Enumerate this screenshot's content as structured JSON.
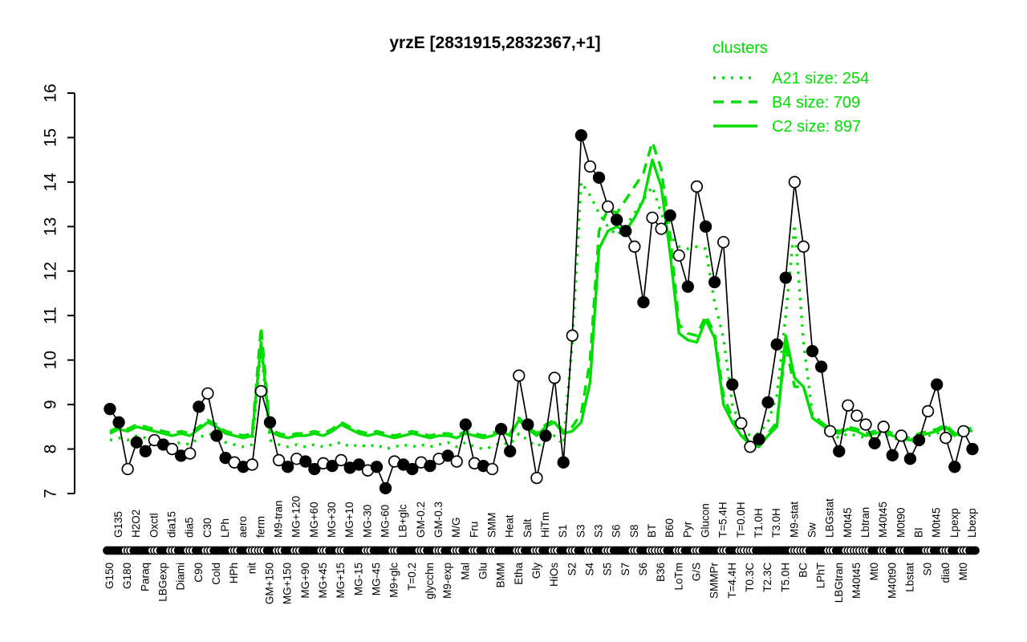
{
  "title": "yrzE [2831915,2832367,+1]",
  "colors": {
    "cluster_green": "#00dd00",
    "profile_line": "#000000",
    "marker_filled": "#000000",
    "marker_open": "#ffffff",
    "background": "#ffffff"
  },
  "legend": {
    "title": "clusters",
    "items": [
      {
        "label": "A21 size: 254",
        "style": "dotted"
      },
      {
        "label": "B4 size: 709",
        "style": "dashed"
      },
      {
        "label": "C2 size: 897",
        "style": "solid"
      }
    ]
  },
  "chart_data": {
    "type": "line",
    "title": "yrzE [2831915,2832367,+1]",
    "xlabel": "",
    "ylabel": "",
    "ylim": [
      7,
      16
    ],
    "yticks": [
      7,
      8,
      9,
      10,
      11,
      12,
      13,
      14,
      15,
      16
    ],
    "grid": false,
    "legend_position": "top-right",
    "categories": [
      "G150",
      "G135",
      "G180",
      "H2O2",
      "Paraq",
      "Oxctl",
      "LBGexp",
      "dia15",
      "Diami",
      "dia5",
      "C90",
      "C30",
      "Cold",
      "LPh",
      "HPh",
      "aero",
      "nit",
      "ferm",
      "GM+150",
      "M9-tran",
      "MG+150",
      "MG+120",
      "MG+90",
      "MG+60",
      "MG+45",
      "MG+30",
      "MG+15",
      "MG+10",
      "MG-15",
      "MG-30",
      "MG-45",
      "MG-60",
      "M9+glc",
      "LB+glc",
      "T=0.2",
      "GM-0.2",
      "glycchn",
      "GM-0.3",
      "M9-exp",
      "M/G",
      "Mal",
      "Fru",
      "Glu",
      "SMM",
      "BMM",
      "Heat",
      "Etha",
      "Salt",
      "Gly",
      "HiTm",
      "HiOs",
      "S1",
      "S2",
      "S3",
      "S4",
      "S3",
      "S5",
      "S6",
      "S7",
      "S8",
      "S6",
      "BT",
      "B36",
      "B60",
      "LoTm",
      "Pyr",
      "G/S",
      "Glucon",
      "SMMPr",
      "T=5.4H",
      "T=4.4H",
      "T=0.0H",
      "T0.3C",
      "T1.0H",
      "T2.3C",
      "T3.0H",
      "T5.0H",
      "M9-stat",
      "BC",
      "Sw",
      "LPhT",
      "LBGstat",
      "LBGtran",
      "M0t45",
      "M40t45",
      "Lbtran",
      "Mt0",
      "M40t45",
      "M40t90",
      "M0t90",
      "Lbstat",
      "BI",
      "S0",
      "M0t45",
      "dia0",
      "Lpexp",
      "Mt0",
      "Lbexp"
    ],
    "points": {
      "name": "yrzE expression profile",
      "values": [
        8.9,
        8.6,
        7.55,
        8.15,
        7.95,
        8.2,
        8.1,
        8.0,
        7.85,
        7.9,
        8.95,
        9.25,
        8.3,
        7.8,
        7.7,
        7.6,
        7.65,
        9.3,
        8.6,
        7.75,
        7.6,
        7.78,
        7.72,
        7.55,
        7.68,
        7.62,
        7.75,
        7.58,
        7.65,
        7.52,
        7.6,
        7.12,
        7.72,
        7.65,
        7.55,
        7.7,
        7.62,
        7.78,
        7.85,
        7.72,
        8.55,
        7.68,
        7.62,
        7.55,
        8.45,
        7.95,
        9.65,
        8.55,
        7.35,
        8.3,
        9.6,
        7.7,
        10.55,
        15.05,
        14.35,
        14.1,
        13.45,
        13.15,
        12.9,
        12.55,
        11.3,
        13.2,
        12.95,
        13.25,
        12.35,
        11.65,
        13.9,
        13.0,
        11.75,
        12.65,
        9.45,
        8.58,
        8.05,
        8.22,
        9.05,
        10.35,
        11.85,
        14.0,
        12.55,
        10.2,
        9.85,
        8.4,
        7.95,
        8.98,
        8.75,
        8.55,
        8.13,
        8.5,
        7.86,
        8.3,
        7.78,
        8.2,
        8.85,
        9.45,
        8.25,
        7.6,
        8.4,
        8.0
      ],
      "filled": [
        1,
        1,
        0,
        1,
        1,
        0,
        1,
        0,
        1,
        0,
        1,
        0,
        1,
        1,
        0,
        1,
        0,
        0,
        1,
        0,
        1,
        0,
        1,
        1,
        0,
        1,
        0,
        1,
        1,
        0,
        1,
        1,
        0,
        1,
        1,
        0,
        1,
        0,
        1,
        0,
        1,
        0,
        1,
        0,
        1,
        1,
        0,
        1,
        0,
        1,
        0,
        1,
        0,
        1,
        0,
        1,
        0,
        1,
        1,
        0,
        1,
        0,
        0,
        1,
        0,
        1,
        0,
        1,
        1,
        0,
        1,
        0,
        0,
        1,
        1,
        1,
        1,
        0,
        0,
        1,
        1,
        0,
        1,
        0,
        0,
        0,
        1,
        0,
        1,
        0,
        1,
        1,
        0,
        1,
        0,
        1,
        0,
        1
      ]
    },
    "series": [
      {
        "name": "A21 size: 254",
        "style": "dotted",
        "color": "#00dd00",
        "values": [
          8.2,
          8.25,
          8.2,
          8.3,
          8.25,
          8.2,
          8.15,
          8.1,
          8.15,
          8.1,
          8.25,
          8.35,
          8.3,
          8.15,
          8.1,
          8.05,
          8.1,
          10.3,
          8.2,
          8.1,
          8.05,
          8.1,
          8.05,
          8.1,
          8.05,
          8.1,
          8.15,
          8.05,
          8.1,
          8.05,
          8.1,
          8.0,
          8.05,
          8.1,
          8.05,
          8.1,
          8.05,
          8.1,
          8.15,
          8.05,
          8.15,
          8.05,
          8.0,
          8.05,
          8.15,
          8.1,
          8.35,
          8.2,
          8.05,
          8.2,
          8.3,
          8.1,
          10.4,
          14.0,
          13.7,
          13.3,
          13.0,
          12.8,
          13.0,
          13.3,
          13.6,
          13.9,
          13.3,
          12.8,
          12.55,
          12.5,
          12.55,
          12.5,
          11.3,
          10.5,
          9.0,
          8.5,
          8.3,
          8.35,
          8.6,
          9.2,
          11.0,
          13.05,
          10.4,
          8.8,
          8.6,
          8.35,
          8.25,
          8.35,
          8.3,
          8.25,
          8.3,
          8.35,
          8.25,
          8.2,
          8.15,
          8.25,
          8.3,
          8.35,
          8.45,
          8.25,
          8.4,
          8.35
        ]
      },
      {
        "name": "B4 size: 709",
        "style": "dashed",
        "color": "#00dd00",
        "values": [
          8.4,
          8.5,
          8.45,
          8.55,
          8.5,
          8.45,
          8.4,
          8.35,
          8.4,
          8.35,
          8.5,
          8.65,
          8.55,
          8.4,
          8.35,
          8.3,
          8.35,
          10.75,
          8.45,
          8.35,
          8.3,
          8.35,
          8.35,
          8.4,
          8.35,
          8.45,
          8.6,
          8.5,
          8.4,
          8.35,
          8.4,
          8.35,
          8.3,
          8.35,
          8.4,
          8.35,
          8.3,
          8.35,
          8.35,
          8.3,
          8.4,
          8.35,
          8.3,
          8.35,
          8.45,
          8.35,
          8.7,
          8.5,
          8.35,
          8.55,
          8.65,
          8.4,
          8.5,
          8.8,
          10.0,
          12.9,
          13.4,
          13.3,
          13.6,
          13.9,
          14.2,
          14.9,
          14.3,
          12.8,
          10.8,
          10.6,
          10.55,
          11.0,
          10.6,
          9.2,
          8.7,
          8.35,
          8.15,
          8.1,
          8.35,
          8.6,
          10.3,
          9.4,
          9.4,
          8.75,
          8.6,
          8.45,
          8.4,
          8.5,
          8.45,
          8.35,
          8.4,
          8.45,
          8.35,
          8.3,
          8.25,
          8.35,
          8.4,
          8.45,
          8.55,
          8.35,
          8.5,
          8.45
        ]
      },
      {
        "name": "C2 size: 897",
        "style": "solid",
        "color": "#00dd00",
        "values": [
          8.35,
          8.45,
          8.4,
          8.5,
          8.45,
          8.4,
          8.35,
          8.3,
          8.35,
          8.3,
          8.45,
          8.6,
          8.5,
          8.35,
          8.3,
          8.25,
          8.3,
          10.4,
          8.4,
          8.3,
          8.25,
          8.3,
          8.3,
          8.35,
          8.3,
          8.4,
          8.55,
          8.45,
          8.35,
          8.3,
          8.35,
          8.3,
          8.25,
          8.3,
          8.35,
          8.3,
          8.25,
          8.3,
          8.3,
          8.25,
          8.35,
          8.3,
          8.25,
          8.3,
          8.4,
          8.3,
          8.65,
          8.45,
          8.3,
          8.5,
          8.6,
          8.35,
          8.4,
          8.6,
          9.5,
          12.5,
          12.9,
          13.0,
          12.9,
          13.2,
          13.6,
          14.5,
          13.9,
          12.4,
          10.6,
          10.45,
          10.4,
          10.9,
          10.5,
          9.0,
          8.6,
          8.3,
          8.1,
          8.05,
          8.3,
          8.5,
          10.55,
          9.6,
          9.4,
          8.7,
          8.55,
          8.4,
          8.35,
          8.45,
          8.4,
          8.3,
          8.35,
          8.4,
          8.3,
          8.25,
          8.2,
          8.3,
          8.35,
          8.4,
          8.5,
          8.3,
          8.45,
          8.4
        ]
      }
    ]
  }
}
